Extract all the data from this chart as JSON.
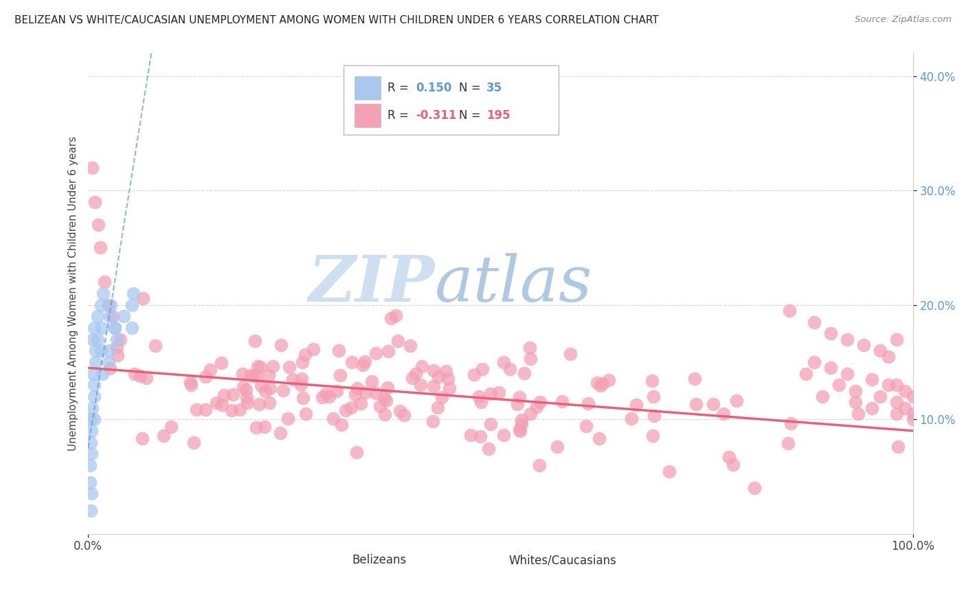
{
  "title": "BELIZEAN VS WHITE/CAUCASIAN UNEMPLOYMENT AMONG WOMEN WITH CHILDREN UNDER 6 YEARS CORRELATION CHART",
  "source": "Source: ZipAtlas.com",
  "ylabel": "Unemployment Among Women with Children Under 6 years",
  "watermark_zip": "ZIP",
  "watermark_atlas": "atlas",
  "legend_blue_R": "0.150",
  "legend_blue_N": "35",
  "legend_pink_R": "-0.311",
  "legend_pink_N": "195",
  "blue_color": "#A8C8F0",
  "pink_color": "#F4A0B5",
  "trend_blue_color": "#5B9BD5",
  "trend_pink_color": "#E8607A",
  "label_color": "#5B9BD5",
  "xlim": [
    0.0,
    1.0
  ],
  "ylim": [
    0.0,
    0.42
  ],
  "yticks": [
    0.1,
    0.2,
    0.3,
    0.4
  ],
  "ytick_labels": [
    "10.0%",
    "20.0%",
    "30.0%",
    "40.0%"
  ]
}
